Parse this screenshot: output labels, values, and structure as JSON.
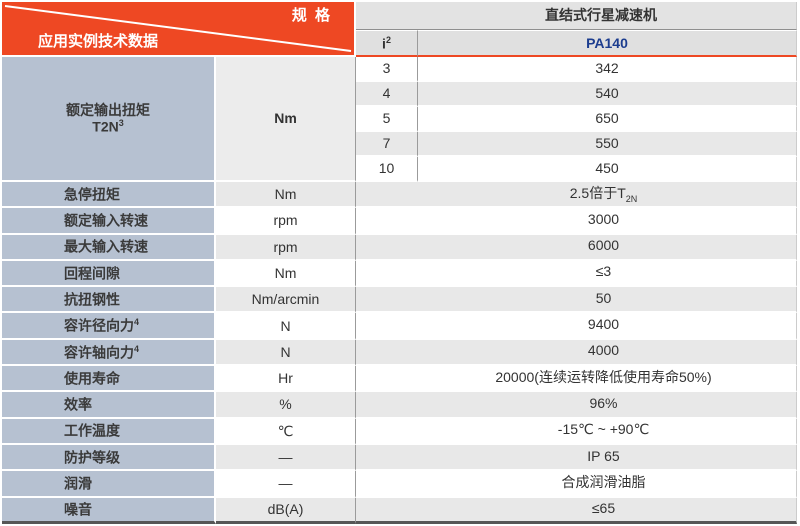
{
  "corner": {
    "top_right": "规 格",
    "bottom_left": "应用实例技术数据"
  },
  "header": {
    "product": "直结式行星减速机",
    "ratio_label_base": "i",
    "ratio_label_sup": "2",
    "model": "PA140"
  },
  "torque_block": {
    "label_line1": "额定输出扭矩",
    "label_line2": "T2N",
    "label_line2_sup": "3",
    "unit": "Nm",
    "rows": [
      {
        "ratio": "3",
        "value": "342"
      },
      {
        "ratio": "4",
        "value": "540"
      },
      {
        "ratio": "5",
        "value": "650"
      },
      {
        "ratio": "7",
        "value": "550"
      },
      {
        "ratio": "10",
        "value": "450"
      }
    ]
  },
  "spec_rows": [
    {
      "label": "急停扭矩",
      "unit": "Nm",
      "value": "2.5倍于T",
      "value_sub": "2N"
    },
    {
      "label": "额定输入转速",
      "unit": "rpm",
      "value": "3000"
    },
    {
      "label": "最大输入转速",
      "unit": "rpm",
      "value": "6000"
    },
    {
      "label": "回程间隙",
      "unit": "Nm",
      "value": "≤3"
    },
    {
      "label": "抗扭钢性",
      "unit": "Nm/arcmin",
      "value": "50"
    },
    {
      "label": "容许径向力",
      "label_sup": "4",
      "unit": "N",
      "value": "9400"
    },
    {
      "label": "容许轴向力",
      "label_sup": "4",
      "unit": "N",
      "value": "4000"
    },
    {
      "label": "使用寿命",
      "unit": "Hr",
      "value": "20000(连续运转降低使用寿命50%)"
    },
    {
      "label": "效率",
      "unit": "%",
      "value": "96%"
    },
    {
      "label": "工作温度",
      "unit": "℃",
      "value": "-15℃ ~ +90℃"
    },
    {
      "label": "防护等级",
      "unit": "—",
      "value": "IP 65"
    },
    {
      "label": "润滑",
      "unit": "—",
      "value": "合成润滑油脂"
    },
    {
      "label": "噪音",
      "unit": "dB(A)",
      "value": "≤65"
    }
  ],
  "colors": {
    "accent": "#ee4823",
    "model_navy": "#1c3d8f",
    "label_bg": "#b6c1d1",
    "stripe": "#e8e8e8",
    "header_gray": "#e3e3e3"
  }
}
